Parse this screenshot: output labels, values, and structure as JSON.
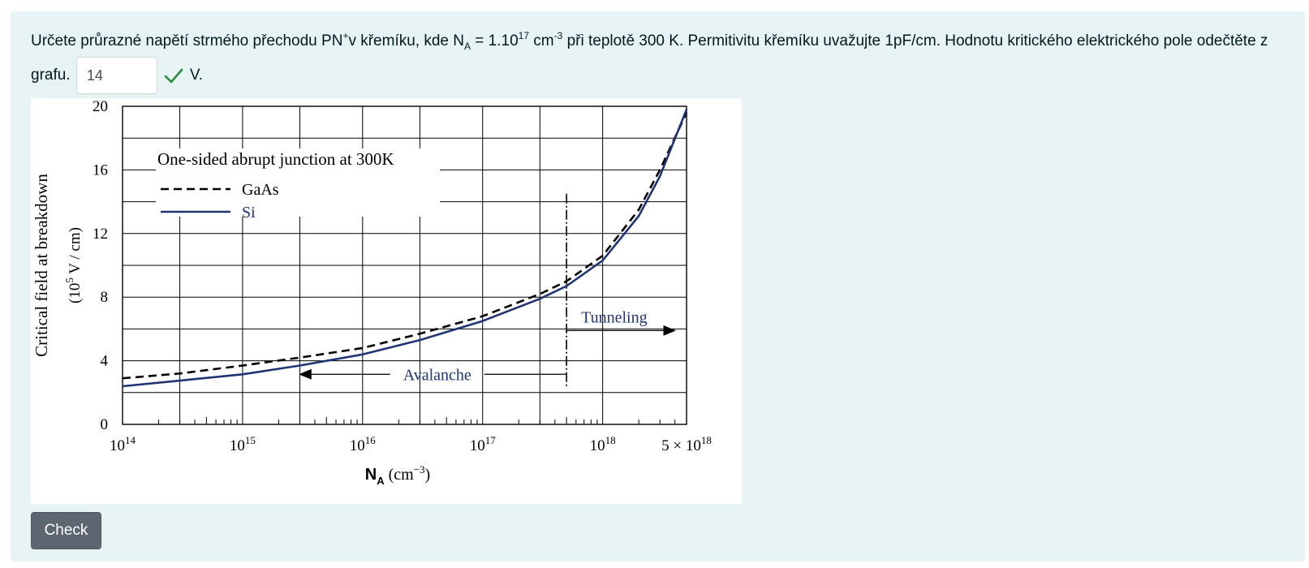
{
  "question": {
    "text_part1": "Určete průrazné napětí strmého přechodu PN",
    "text_sup_plus": "+",
    "text_part2": "v křemíku, kde N",
    "text_sub_a": "A",
    "text_part3": " = 1.10",
    "text_sup_17": "17",
    "text_part4": " cm",
    "text_sup_m3": "-3",
    "text_part5": " při teplotě 300 K. Permitivitu křemíku uvažujte 1pF/cm. Hodnotu kritického elektrického pole odečtěte z grafu.",
    "answer_value": "14",
    "answer_status_icon": "check-icon",
    "answer_status_color": "#2e8b3e",
    "unit": "V."
  },
  "check_button": {
    "label": "Check",
    "color": "#5b6670"
  },
  "chart_data": {
    "type": "line",
    "title": "One-sided abrupt junction at 300K",
    "xlabel": "N_A (cm^-3)",
    "xlabel_main": "N",
    "xlabel_sub": "A",
    "xlabel_unit": "(cm",
    "xlabel_unit_exp": "−3",
    "xlabel_unit_close": ")",
    "ylabel": "Critical field at breakdown",
    "ylabel_unit_pre": "(10",
    "ylabel_unit_exp": "5",
    "ylabel_unit_post": " V / cm)",
    "x_scale": "log",
    "xlim": [
      100000000000000.0,
      5e+18
    ],
    "ylim": [
      0,
      20
    ],
    "y_ticks": [
      0,
      4,
      8,
      12,
      16,
      20
    ],
    "x_tick_labels": [
      {
        "value": 100000000000000.0,
        "base": "10",
        "exp": "14"
      },
      {
        "value": 1000000000000000.0,
        "base": "10",
        "exp": "15"
      },
      {
        "value": 1e+16,
        "base": "10",
        "exp": "16"
      },
      {
        "value": 1e+17,
        "base": "10",
        "exp": "17"
      },
      {
        "value": 1e+18,
        "base": "10",
        "exp": "18"
      },
      {
        "value": 5e+18,
        "base": "5 × 10",
        "exp": "18"
      }
    ],
    "grid": true,
    "series": [
      {
        "name": "GaAs",
        "style": "dashed",
        "color": "#000000",
        "x": [
          100000000000000.0,
          300000000000000.0,
          1000000000000000.0,
          3000000000000000.0,
          1e+16,
          3e+16,
          1e+17,
          3e+17,
          5e+17,
          1e+18,
          2e+18,
          3e+18,
          5e+18
        ],
        "y": [
          2.9,
          3.2,
          3.7,
          4.2,
          4.8,
          5.7,
          6.8,
          8.2,
          9.0,
          10.6,
          13.5,
          16.0,
          19.6
        ]
      },
      {
        "name": "Si",
        "style": "solid",
        "color": "#1f3474",
        "x": [
          100000000000000.0,
          300000000000000.0,
          1000000000000000.0,
          3000000000000000.0,
          1e+16,
          3e+16,
          1e+17,
          3e+17,
          5e+17,
          1e+18,
          2e+18,
          3e+18,
          5e+18
        ],
        "y": [
          2.4,
          2.75,
          3.15,
          3.7,
          4.4,
          5.3,
          6.5,
          7.9,
          8.7,
          10.3,
          13.1,
          15.6,
          19.8
        ]
      }
    ],
    "annotations": [
      {
        "text": "Avalanche",
        "x_from": 5e+17,
        "x_to": 3000000000000000.0,
        "y": 3.15,
        "arrow": "left"
      },
      {
        "text": "Tunneling",
        "x_from": 5e+17,
        "x_to": 4e+18,
        "y": 5.9,
        "arrow": "right"
      }
    ],
    "boundary_x": 5e+17,
    "boundary_ymax": 14.5,
    "colors": {
      "axis": "#000000",
      "si": "#1f3474",
      "gaas": "#000000",
      "annotation": "#1f3474"
    }
  }
}
